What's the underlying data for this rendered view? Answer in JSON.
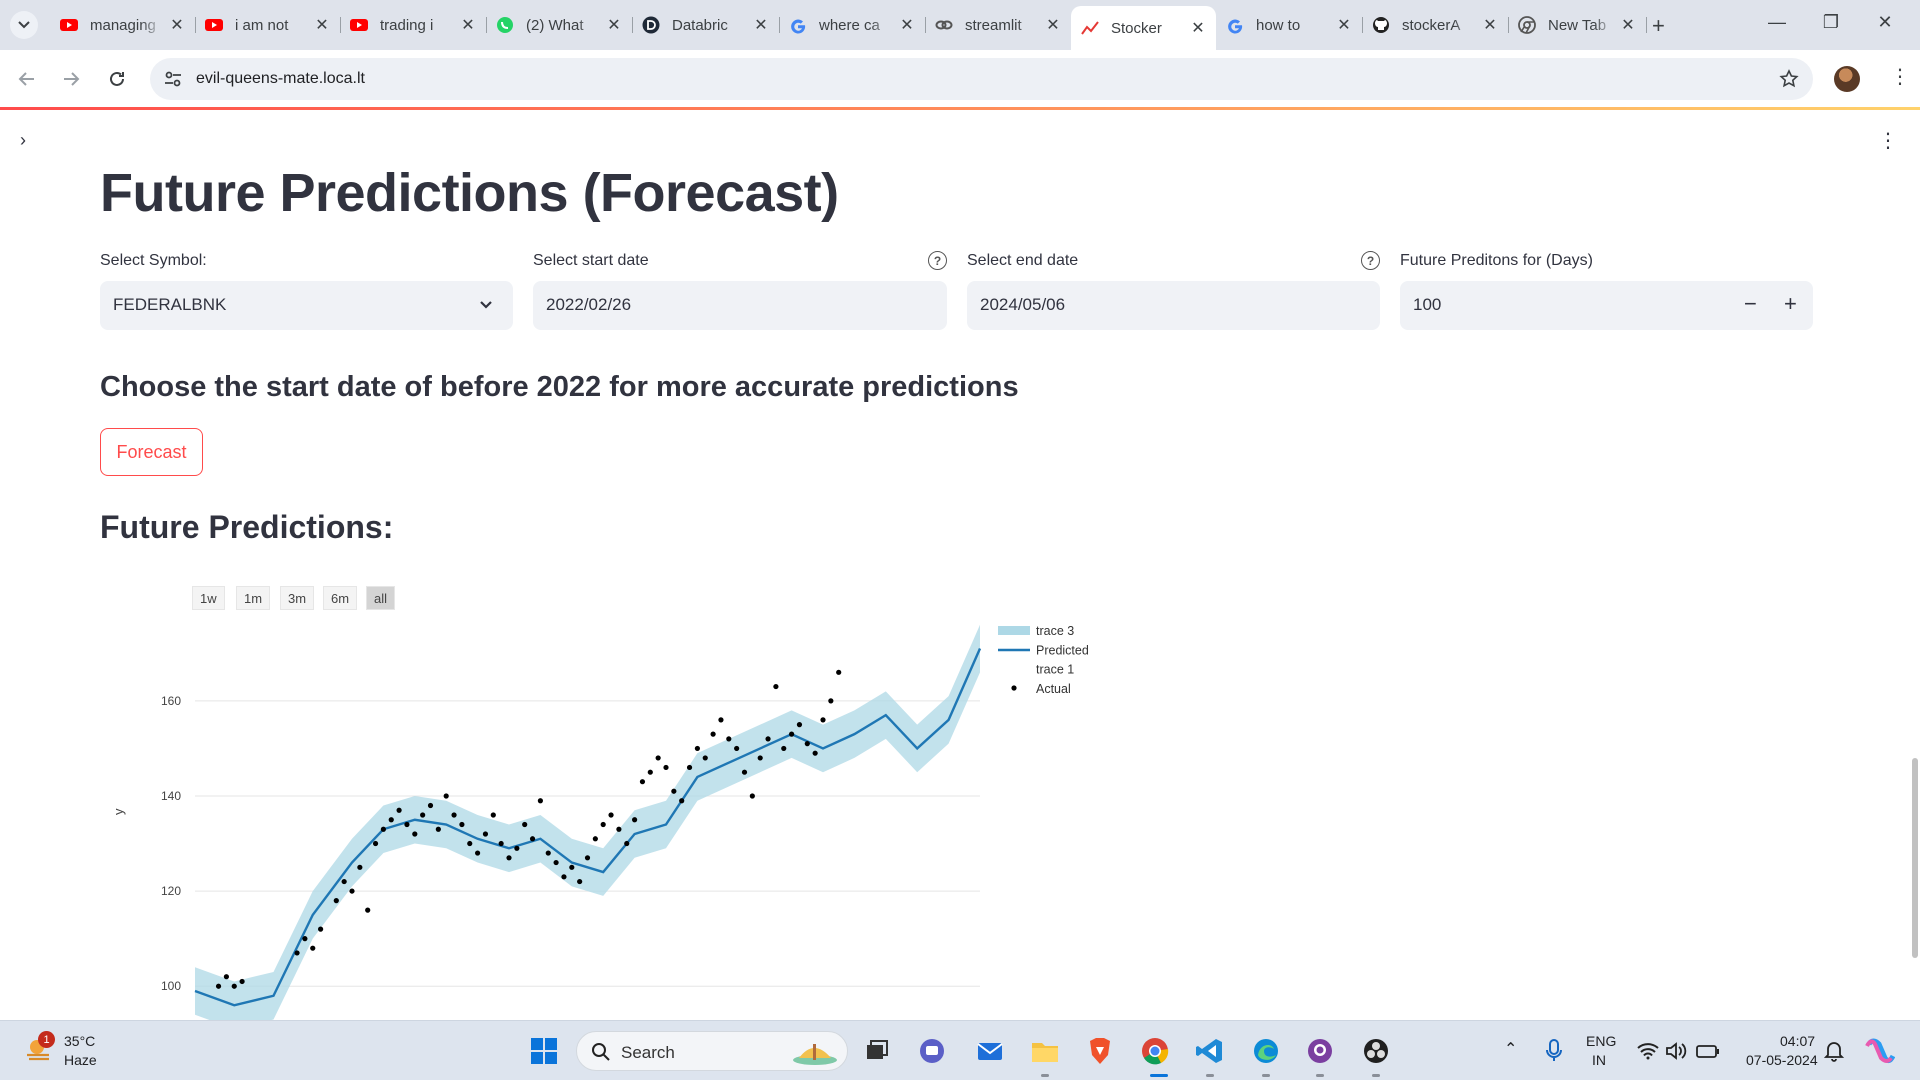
{
  "browser": {
    "tabs": [
      {
        "title": "managing",
        "icon": "youtube-icon"
      },
      {
        "title": "i am not",
        "icon": "youtube-icon"
      },
      {
        "title": "trading i",
        "icon": "youtube-icon"
      },
      {
        "title": "(2) What",
        "icon": "whatsapp-icon"
      },
      {
        "title": "Databric",
        "icon": "databricks-icon"
      },
      {
        "title": "where ca",
        "icon": "google-icon"
      },
      {
        "title": "streamlit",
        "icon": "link-icon"
      },
      {
        "title": "Stocker",
        "icon": "chart-icon",
        "active": true
      },
      {
        "title": "how to",
        "icon": "google-icon"
      },
      {
        "title": "stockerA",
        "icon": "github-icon"
      },
      {
        "title": "New Tab",
        "icon": "chrome-icon"
      }
    ],
    "url": "evil-queens-mate.loca.lt"
  },
  "app": {
    "title": "Future Predictions (Forecast)",
    "symbol": {
      "label": "Select Symbol:",
      "value": "FEDERALBNK"
    },
    "start_date": {
      "label": "Select start date",
      "value": "2022/02/26"
    },
    "end_date": {
      "label": "Select end date",
      "value": "2024/05/06"
    },
    "days": {
      "label": "Future Preditons for (Days)",
      "value": "100"
    },
    "note": "Choose the start date of before 2022 for more accurate predictions",
    "button": "Forecast",
    "chart_heading": "Future Predictions:",
    "range_buttons": [
      "1w",
      "1m",
      "3m",
      "6m",
      "all"
    ]
  },
  "chart_data": {
    "type": "line",
    "title": "",
    "xlabel": "",
    "ylabel": "y",
    "ylim": [
      95,
      177
    ],
    "yticks": [
      100,
      120,
      140,
      160
    ],
    "grid": true,
    "legend_position": "top-right",
    "legend": [
      "trace 3",
      "Predicted",
      "trace 1",
      "Actual"
    ],
    "colors": {
      "predicted": "#1f77b4",
      "band": "#add8e6",
      "actual": "#000000"
    },
    "x_index": [
      0,
      5,
      10,
      15,
      20,
      24,
      28,
      32,
      36,
      40,
      44,
      48,
      52,
      56,
      60,
      64,
      68,
      72,
      76,
      80,
      84,
      88,
      92,
      96,
      100
    ],
    "predicted": [
      99,
      96,
      98,
      115,
      126,
      133,
      135,
      134,
      131,
      129,
      131,
      126,
      124,
      132,
      134,
      144,
      147,
      150,
      153,
      150,
      153,
      157,
      150,
      156,
      171
    ],
    "upper": [
      104,
      101,
      103,
      120,
      131,
      138,
      140,
      139,
      136,
      134,
      136,
      131,
      129,
      137,
      139,
      149,
      152,
      155,
      158,
      155,
      158,
      162,
      155,
      161,
      176
    ],
    "lower": [
      94,
      91,
      93,
      110,
      121,
      128,
      130,
      129,
      126,
      124,
      126,
      121,
      119,
      127,
      129,
      139,
      142,
      145,
      148,
      145,
      148,
      152,
      145,
      151,
      166
    ],
    "actual": [
      [
        3,
        100
      ],
      [
        4,
        102
      ],
      [
        5,
        100
      ],
      [
        6,
        101
      ],
      [
        13,
        107
      ],
      [
        14,
        110
      ],
      [
        15,
        108
      ],
      [
        16,
        112
      ],
      [
        18,
        118
      ],
      [
        19,
        122
      ],
      [
        20,
        120
      ],
      [
        21,
        125
      ],
      [
        22,
        116
      ],
      [
        23,
        130
      ],
      [
        24,
        133
      ],
      [
        25,
        135
      ],
      [
        26,
        137
      ],
      [
        27,
        134
      ],
      [
        28,
        132
      ],
      [
        29,
        136
      ],
      [
        30,
        138
      ],
      [
        31,
        133
      ],
      [
        32,
        140
      ],
      [
        33,
        136
      ],
      [
        34,
        134
      ],
      [
        35,
        130
      ],
      [
        36,
        128
      ],
      [
        37,
        132
      ],
      [
        38,
        136
      ],
      [
        39,
        130
      ],
      [
        40,
        127
      ],
      [
        41,
        129
      ],
      [
        42,
        134
      ],
      [
        43,
        131
      ],
      [
        44,
        139
      ],
      [
        45,
        128
      ],
      [
        46,
        126
      ],
      [
        47,
        123
      ],
      [
        48,
        125
      ],
      [
        49,
        122
      ],
      [
        50,
        127
      ],
      [
        51,
        131
      ],
      [
        52,
        134
      ],
      [
        53,
        136
      ],
      [
        54,
        133
      ],
      [
        55,
        130
      ],
      [
        56,
        135
      ],
      [
        57,
        143
      ],
      [
        58,
        145
      ],
      [
        59,
        148
      ],
      [
        60,
        146
      ],
      [
        61,
        141
      ],
      [
        62,
        139
      ],
      [
        63,
        146
      ],
      [
        64,
        150
      ],
      [
        65,
        148
      ],
      [
        66,
        153
      ],
      [
        67,
        156
      ],
      [
        68,
        152
      ],
      [
        69,
        150
      ],
      [
        70,
        145
      ],
      [
        71,
        140
      ],
      [
        72,
        148
      ],
      [
        73,
        152
      ],
      [
        74,
        163
      ],
      [
        75,
        150
      ],
      [
        76,
        153
      ],
      [
        77,
        155
      ],
      [
        78,
        151
      ],
      [
        79,
        149
      ],
      [
        80,
        156
      ],
      [
        81,
        160
      ],
      [
        82,
        166
      ]
    ]
  },
  "taskbar": {
    "weather_temp": "35°C",
    "weather_desc": "Haze",
    "weather_badge": "1",
    "search": "Search",
    "lang1": "ENG",
    "lang2": "IN",
    "time": "04:07",
    "date": "07-05-2024"
  }
}
